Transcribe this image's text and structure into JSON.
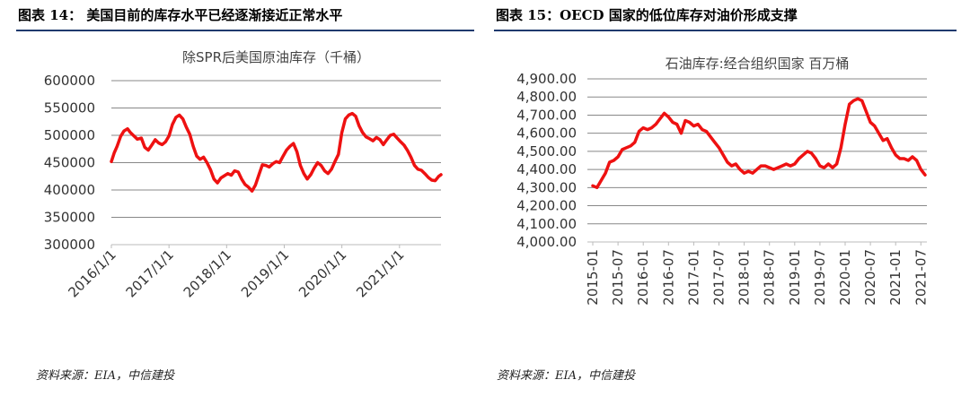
{
  "figures": {
    "left_title": "图表 14：  美国目前的库存水平已经逐渐接近正常水平",
    "right_title": "图表 15：OECD 国家的低位库存对油价形成支撑",
    "left_source": "资料来源：EIA，中信建投",
    "right_source": "资料来源：EIA，中信建投"
  },
  "colors": {
    "line": "#ee1111",
    "rule": "#1f3a6e",
    "grid": "#888888"
  },
  "chart_data": [
    {
      "type": "line",
      "title": "除SPR后美国原油库存（千桶）",
      "xlabel": "",
      "ylabel": "",
      "ylim": [
        300000,
        600000
      ],
      "yticks": [
        "600000",
        "550000",
        "500000",
        "450000",
        "400000",
        "350000",
        "300000"
      ],
      "xticks": [
        "2016/1/1",
        "2017/1/1",
        "2018/1/1",
        "2019/1/1",
        "2020/1/1",
        "2021/1/1"
      ],
      "xlim": [
        2016.0,
        2021.72
      ],
      "grid": true,
      "series": [
        {
          "x": [
            2016.0,
            2016.05,
            2016.1,
            2016.16,
            2016.22,
            2016.28,
            2016.33,
            2016.38,
            2016.45,
            2016.52,
            2016.58,
            2016.64,
            2016.7,
            2016.76,
            2016.82,
            2016.88,
            2016.94,
            2017.0,
            2017.06,
            2017.12,
            2017.18,
            2017.24,
            2017.3,
            2017.36,
            2017.42,
            2017.48,
            2017.54,
            2017.6,
            2017.66,
            2017.72,
            2017.78,
            2017.84,
            2017.9,
            2017.96,
            2018.02,
            2018.08,
            2018.14,
            2018.2,
            2018.26,
            2018.32,
            2018.38,
            2018.44,
            2018.5,
            2018.56,
            2018.62,
            2018.68,
            2018.74,
            2018.8,
            2018.86,
            2018.92,
            2018.98,
            2019.04,
            2019.1,
            2019.16,
            2019.22,
            2019.28,
            2019.34,
            2019.4,
            2019.46,
            2019.52,
            2019.58,
            2019.64,
            2019.7,
            2019.76,
            2019.82,
            2019.88,
            2019.94,
            2020.0,
            2020.06,
            2020.12,
            2020.18,
            2020.24,
            2020.3,
            2020.36,
            2020.42,
            2020.48,
            2020.54,
            2020.6,
            2020.66,
            2020.72,
            2020.78,
            2020.84,
            2020.9,
            2020.96,
            2021.02,
            2021.08,
            2021.14,
            2021.2,
            2021.26,
            2021.32,
            2021.38,
            2021.44,
            2021.5,
            2021.56,
            2021.62,
            2021.68,
            2021.72
          ],
          "values": [
            452000,
            468000,
            480000,
            498000,
            508000,
            512000,
            505000,
            500000,
            493000,
            495000,
            478000,
            473000,
            482000,
            492000,
            486000,
            483000,
            488000,
            499000,
            520000,
            533000,
            537000,
            530000,
            515000,
            502000,
            480000,
            462000,
            456000,
            460000,
            450000,
            437000,
            420000,
            413000,
            422000,
            426000,
            430000,
            427000,
            435000,
            433000,
            420000,
            410000,
            405000,
            398000,
            409000,
            428000,
            446000,
            445000,
            442000,
            448000,
            452000,
            450000,
            462000,
            473000,
            480000,
            485000,
            470000,
            445000,
            430000,
            420000,
            428000,
            440000,
            450000,
            445000,
            435000,
            430000,
            438000,
            452000,
            465000,
            505000,
            530000,
            537000,
            540000,
            535000,
            517000,
            505000,
            497000,
            494000,
            490000,
            496000,
            492000,
            483000,
            492000,
            500000,
            502000,
            495000,
            488000,
            482000,
            472000,
            460000,
            445000,
            438000,
            436000,
            430000,
            423000,
            418000,
            417000,
            425000,
            428000
          ]
        }
      ]
    },
    {
      "type": "line",
      "title": "石油库存:经合组织国家  百万桶",
      "xlabel": "",
      "ylabel": "",
      "ylim": [
        4000,
        4900
      ],
      "yticks": [
        "4,900.00",
        "4,800.00",
        "4,700.00",
        "4,600.00",
        "4,500.00",
        "4,400.00",
        "4,300.00",
        "4,200.00",
        "4,100.00",
        "4,000.00"
      ],
      "xticks": [
        "2015-01",
        "2015-07",
        "2016-01",
        "2016-07",
        "2017-01",
        "2017-07",
        "2018-01",
        "2018-07",
        "2019-01",
        "2019-07",
        "2020-01",
        "2020-07",
        "2021-01",
        "2021-07"
      ],
      "grid": true,
      "series": [
        {
          "x": [
            0,
            1,
            2,
            3,
            4,
            5,
            6,
            7,
            8,
            9,
            10,
            11,
            12,
            13,
            14,
            15,
            16,
            17,
            18,
            19,
            20,
            21,
            22,
            23,
            24,
            25,
            26,
            27,
            28,
            29,
            30,
            31,
            32,
            33,
            34,
            35,
            36,
            37,
            38,
            39,
            40,
            41,
            42,
            43,
            44,
            45,
            46,
            47,
            48,
            49,
            50,
            51,
            52,
            53,
            54,
            55,
            56,
            57,
            58,
            59,
            60,
            61,
            62,
            63,
            64,
            65,
            66,
            67,
            68,
            69,
            70,
            71,
            72,
            73,
            74,
            75,
            76,
            77,
            78,
            79
          ],
          "values": [
            4310,
            4300,
            4340,
            4380,
            4440,
            4450,
            4470,
            4510,
            4520,
            4530,
            4550,
            4610,
            4630,
            4620,
            4630,
            4650,
            4680,
            4710,
            4690,
            4660,
            4650,
            4600,
            4670,
            4660,
            4640,
            4650,
            4620,
            4610,
            4580,
            4550,
            4520,
            4480,
            4440,
            4420,
            4430,
            4400,
            4380,
            4390,
            4380,
            4400,
            4420,
            4420,
            4410,
            4400,
            4410,
            4420,
            4430,
            4420,
            4430,
            4460,
            4480,
            4500,
            4490,
            4460,
            4420,
            4410,
            4430,
            4410,
            4430,
            4520,
            4650,
            4760,
            4780,
            4790,
            4780,
            4720,
            4660,
            4640,
            4600,
            4560,
            4570,
            4520,
            4480,
            4460,
            4460,
            4450,
            4470,
            4450,
            4400,
            4370
          ]
        }
      ]
    }
  ]
}
